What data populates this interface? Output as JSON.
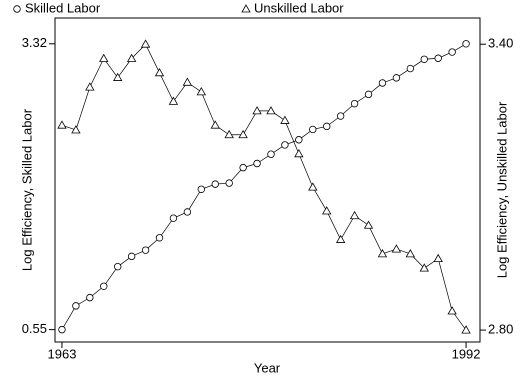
{
  "chart_data": {
    "type": "line",
    "x": [
      1963,
      1964,
      1965,
      1966,
      1967,
      1968,
      1969,
      1970,
      1971,
      1972,
      1973,
      1974,
      1975,
      1976,
      1977,
      1978,
      1979,
      1980,
      1981,
      1982,
      1983,
      1984,
      1985,
      1986,
      1987,
      1988,
      1989,
      1990,
      1991,
      1992
    ],
    "series": [
      {
        "name": "Skilled Labor",
        "color": "#000000",
        "marker": "circle",
        "values": [
          0.55,
          0.78,
          0.86,
          0.97,
          1.16,
          1.26,
          1.32,
          1.44,
          1.63,
          1.69,
          1.91,
          1.96,
          1.97,
          2.12,
          2.16,
          2.25,
          2.34,
          2.39,
          2.49,
          2.52,
          2.62,
          2.74,
          2.83,
          2.94,
          2.99,
          3.08,
          3.17,
          3.18,
          3.24,
          3.32
        ]
      },
      {
        "name": "Unskilled Labor",
        "color": "#000000",
        "marker": "triangle",
        "axis": "y2",
        "values": [
          3.23,
          3.22,
          3.31,
          3.37,
          3.33,
          3.37,
          3.4,
          3.34,
          3.28,
          3.32,
          3.3,
          3.23,
          3.21,
          3.21,
          3.26,
          3.26,
          3.24,
          3.17,
          3.1,
          3.05,
          2.99,
          3.04,
          3.02,
          2.96,
          2.97,
          2.96,
          2.93,
          2.95,
          2.84,
          2.8
        ]
      }
    ],
    "xlabel": "Year",
    "ylabel": "Log Efficiency, Skilled Labor",
    "y2label": "Log Efficiency, Unskilled Labor",
    "xlim": [
      1962.5,
      1993
    ],
    "xticks": [
      1963,
      1992
    ],
    "ylim": [
      0.43,
      3.57
    ],
    "yticks": [
      0.55,
      3.32
    ],
    "y2lim": [
      2.775,
      3.455
    ],
    "y2ticks": [
      {
        "value": 2.8,
        "label": "2.80"
      },
      {
        "value": 3.4,
        "label": "3.40"
      }
    ],
    "legend": "top"
  }
}
